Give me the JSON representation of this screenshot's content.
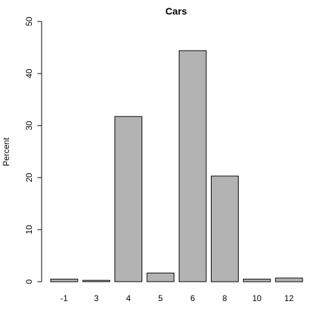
{
  "chart_data": {
    "type": "bar",
    "title": "Cars",
    "xlabel": "",
    "ylabel": "Percent",
    "categories": [
      "-1",
      "3",
      "4",
      "5",
      "6",
      "8",
      "10",
      "12"
    ],
    "values": [
      0.5,
      0.25,
      31.75,
      1.65,
      44.4,
      20.3,
      0.5,
      0.7
    ],
    "yticks": [
      0,
      10,
      20,
      30,
      40,
      50
    ],
    "ylim": [
      0,
      50
    ],
    "grid": false,
    "bar_color": "#b3b3b3"
  }
}
